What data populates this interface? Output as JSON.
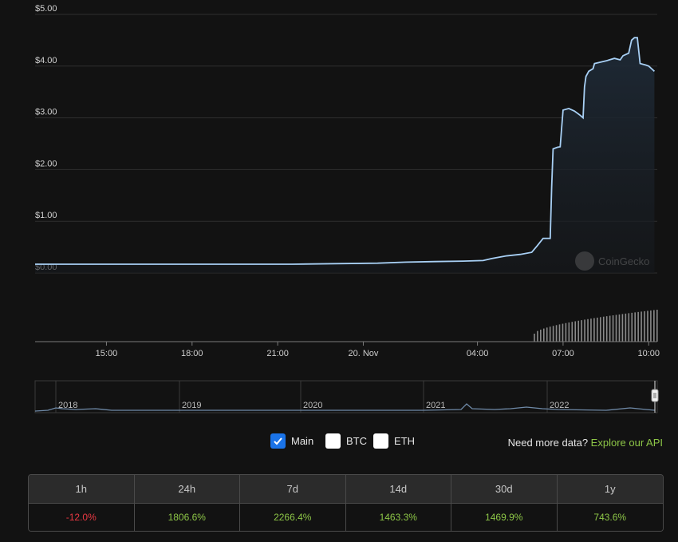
{
  "chart_data": {
    "type": "area",
    "y_unit": "USD",
    "ylim": [
      0,
      5
    ],
    "y_ticks": [
      "$5.00",
      "$4.00",
      "$3.00",
      "$2.00",
      "$1.00",
      "$0.00"
    ],
    "y_tick_values": [
      5,
      4,
      3,
      2,
      1,
      0
    ],
    "xlim": [
      12.5,
      34.3
    ],
    "x_ticks": [
      {
        "t": 15,
        "label": "15:00"
      },
      {
        "t": 18,
        "label": "18:00"
      },
      {
        "t": 21,
        "label": "21:00"
      },
      {
        "t": 24,
        "label": "20. Nov"
      },
      {
        "t": 28,
        "label": "04:00"
      },
      {
        "t": 31,
        "label": "07:00"
      },
      {
        "t": 34,
        "label": "10:00"
      }
    ],
    "grid": true,
    "price_series": {
      "name": "Main",
      "points": [
        [
          12.5,
          0.17
        ],
        [
          14.0,
          0.17
        ],
        [
          15.5,
          0.17
        ],
        [
          17.0,
          0.17
        ],
        [
          18.5,
          0.17
        ],
        [
          20.0,
          0.17
        ],
        [
          21.5,
          0.17
        ],
        [
          23.0,
          0.18
        ],
        [
          24.5,
          0.19
        ],
        [
          25.5,
          0.21
        ],
        [
          26.5,
          0.22
        ],
        [
          27.5,
          0.23
        ],
        [
          28.2,
          0.24
        ],
        [
          28.5,
          0.28
        ],
        [
          29.0,
          0.33
        ],
        [
          29.5,
          0.36
        ],
        [
          29.9,
          0.4
        ],
        [
          30.1,
          0.53
        ],
        [
          30.3,
          0.67
        ],
        [
          30.55,
          0.67
        ],
        [
          30.6,
          1.65
        ],
        [
          30.65,
          2.4
        ],
        [
          30.8,
          2.43
        ],
        [
          30.9,
          2.44
        ],
        [
          30.95,
          2.8
        ],
        [
          31.0,
          3.15
        ],
        [
          31.2,
          3.18
        ],
        [
          31.4,
          3.13
        ],
        [
          31.6,
          3.05
        ],
        [
          31.7,
          3.0
        ],
        [
          31.75,
          3.6
        ],
        [
          31.8,
          3.8
        ],
        [
          31.9,
          3.9
        ],
        [
          32.05,
          3.95
        ],
        [
          32.1,
          4.05
        ],
        [
          32.5,
          4.1
        ],
        [
          32.8,
          4.15
        ],
        [
          33.0,
          4.12
        ],
        [
          33.1,
          4.2
        ],
        [
          33.3,
          4.25
        ],
        [
          33.4,
          4.5
        ],
        [
          33.5,
          4.55
        ],
        [
          33.6,
          4.55
        ],
        [
          33.7,
          4.05
        ],
        [
          33.9,
          4.02
        ],
        [
          34.0,
          4.0
        ],
        [
          34.1,
          3.95
        ],
        [
          34.2,
          3.9
        ]
      ]
    },
    "volume_series": {
      "start": 30.0,
      "end": 34.3,
      "count": 40
    },
    "navigator": {
      "year_labels": [
        "2018",
        "2019",
        "2020",
        "2021",
        "2022"
      ]
    },
    "watermark": "CoinGecko"
  },
  "controls": {
    "main_label": "Main",
    "btc_label": "BTC",
    "eth_label": "ETH",
    "main_checked": true,
    "btc_checked": false,
    "eth_checked": false,
    "more_data_text": "Need more data?",
    "more_data_link": "Explore our API"
  },
  "performance": {
    "columns": [
      "1h",
      "24h",
      "7d",
      "14d",
      "30d",
      "1y"
    ],
    "values": [
      "-12.0%",
      "1806.6%",
      "2266.4%",
      "1463.3%",
      "1469.9%",
      "743.6%"
    ],
    "positive_color": "#8dc647",
    "negative_color": "#ea3943"
  },
  "colors": {
    "line": "#a8d0f5",
    "volume": "#8a8a8a",
    "grid": "#2e2e2e",
    "axis_text": "#d0d0d0"
  }
}
